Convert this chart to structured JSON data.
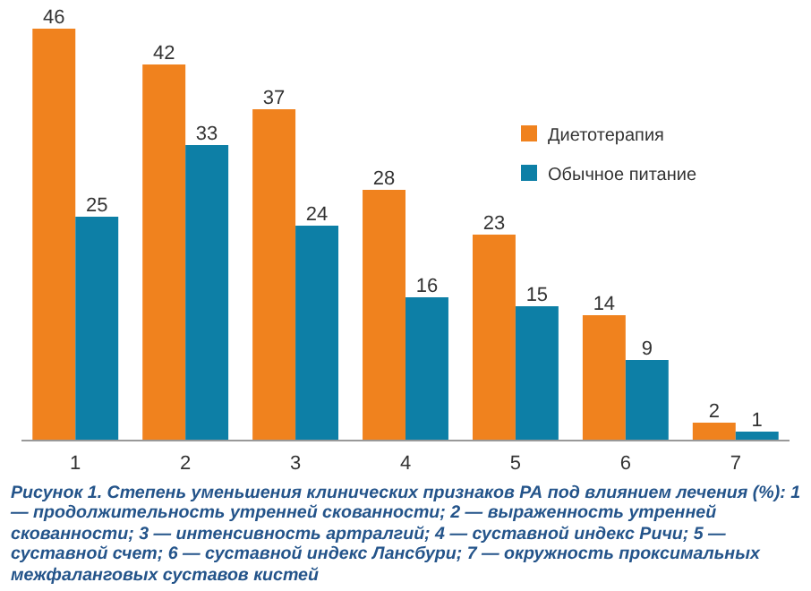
{
  "chart_data": {
    "type": "bar",
    "categories": [
      "1",
      "2",
      "3",
      "4",
      "5",
      "6",
      "7"
    ],
    "series": [
      {
        "name": "Диетотерапия",
        "color": "#f0821e",
        "values": [
          46,
          42,
          37,
          28,
          23,
          14,
          2
        ]
      },
      {
        "name": "Обычное питание",
        "color": "#0d7fa6",
        "values": [
          25,
          33,
          24,
          16,
          15,
          9,
          1
        ]
      }
    ],
    "data_labels": true,
    "legend": "top right",
    "annotations": [
      "Рисунок 1. Степень уменьшения клинических признаков РА под влиянием лечения (%): 1 — продолжительность утренней скованности; 2 — выраженность утренней скованности; 3 — интенсивность артралгий; 4 — суставной индекс Ричи; 5 — суставной счет; 6 — суставной индекс Лансбури; 7 — окружность проксимальных межфаланговых суставов кистей"
    ]
  }
}
